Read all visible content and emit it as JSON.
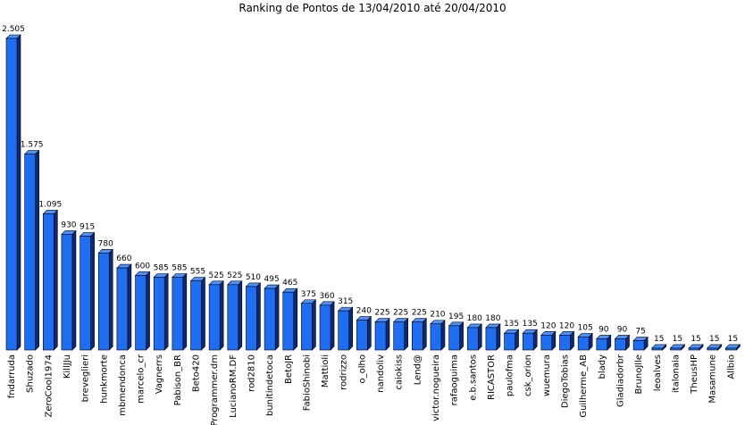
{
  "chart_data": {
    "type": "bar",
    "title": "Ranking de Pontos de 13/04/2010 até 20/04/2010",
    "xlabel": "",
    "ylabel": "",
    "ylim": [
      0,
      2505
    ],
    "grid": false,
    "legend": "none",
    "colors": {
      "bar_front": "#1f6ef2",
      "bar_top": "#4f92ff",
      "bar_side": "#0a2a78",
      "bar_outline": "#000000"
    },
    "categories": [
      "fndarruda",
      "Shuzado",
      "ZeroCool1974",
      "KillJJu",
      "breveglieri",
      "hunkmorte",
      "mbmendonca",
      "marcelo_cr",
      "Vagnerrs",
      "Pabison_BR",
      "Beto420",
      "Programmer.dm",
      "LucianoRM.DF",
      "rod2810",
      "bunitindetoca",
      "BetoJR",
      "FabioShinobi",
      "Mattioli",
      "rodrizzo",
      "o_olho",
      "nandoliv",
      "caiokiss",
      "Lend@",
      "victor.nogueira",
      "rafaoguima",
      "e.b.santos",
      "RICASTOR",
      "paulofma",
      "csk_orion",
      "wuemura",
      "DiegoTobias",
      "Guilherme_AB",
      "blady",
      "Gladiadorbr",
      "BrunoJlle",
      "leoalves",
      "italonaia",
      "TheusHP",
      "Masamune",
      "Allbio"
    ],
    "values": [
      2505,
      1575,
      1095,
      930,
      915,
      780,
      660,
      600,
      585,
      585,
      555,
      525,
      525,
      510,
      495,
      465,
      375,
      360,
      315,
      240,
      225,
      225,
      225,
      210,
      195,
      180,
      180,
      135,
      135,
      120,
      120,
      105,
      90,
      90,
      75,
      15,
      15,
      15,
      15,
      15
    ],
    "value_labels": [
      "2.505",
      "1.575",
      "1.095",
      "930",
      "915",
      "780",
      "660",
      "600",
      "585",
      "585",
      "555",
      "525",
      "525",
      "510",
      "495",
      "465",
      "375",
      "360",
      "315",
      "240",
      "225",
      "225",
      "225",
      "210",
      "195",
      "180",
      "180",
      "135",
      "135",
      "120",
      "120",
      "105",
      "90",
      "90",
      "75",
      "15",
      "15",
      "15",
      "15",
      "15"
    ]
  }
}
